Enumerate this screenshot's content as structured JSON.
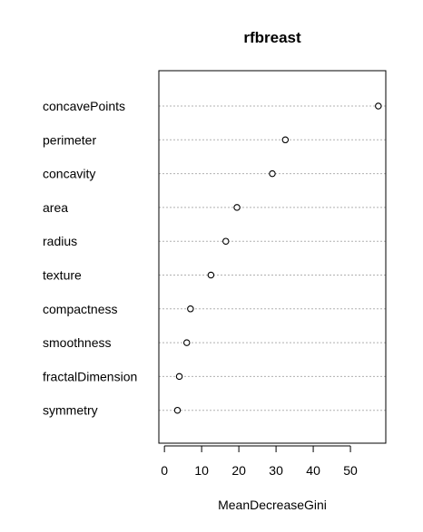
{
  "chart_data": {
    "type": "scatter",
    "subtype": "dotchart",
    "title": "rfbreast",
    "xlabel": "MeanDecreaseGini",
    "ylabel": "",
    "xlim": [
      -1.5,
      59.5
    ],
    "xticks": [
      0,
      10,
      20,
      30,
      40,
      50
    ],
    "grid": "dotted horizontal lines per variable",
    "categories": [
      "concavePoints",
      "perimeter",
      "concavity",
      "area",
      "radius",
      "texture",
      "compactness",
      "smoothness",
      "fractalDimension",
      "symmetry"
    ],
    "values": [
      57.5,
      32.5,
      29.0,
      19.5,
      16.5,
      12.5,
      7.0,
      6.0,
      4.0,
      3.5
    ],
    "colors": {
      "point_stroke": "#000000",
      "point_fill": "#ffffff",
      "gridline": "#b0b0b0"
    }
  }
}
